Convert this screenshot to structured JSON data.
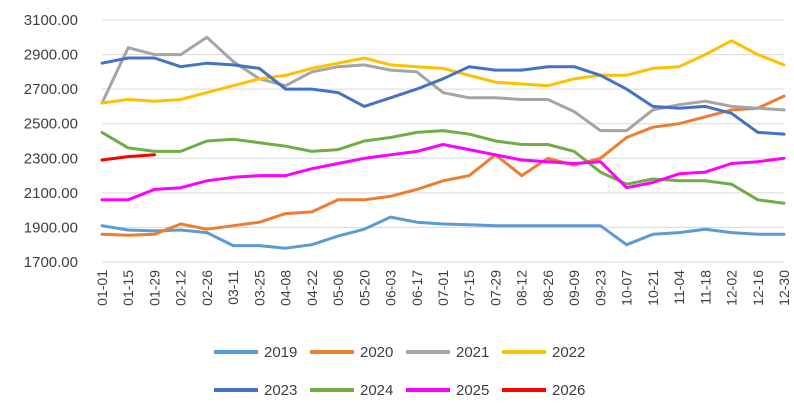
{
  "chart_data": {
    "type": "line",
    "title": "",
    "xlabel": "",
    "ylabel": "",
    "ylim": [
      1700,
      3100
    ],
    "y_ticks": [
      "1700.00",
      "1900.00",
      "2100.00",
      "2300.00",
      "2500.00",
      "2700.00",
      "2900.00",
      "3100.00"
    ],
    "x_ticks": [
      "01-01",
      "01-15",
      "01-29",
      "02-12",
      "02-26",
      "03-11",
      "03-25",
      "04-08",
      "04-22",
      "05-06",
      "05-20",
      "06-03",
      "06-17",
      "07-01",
      "07-15",
      "07-29",
      "08-12",
      "08-26",
      "09-09",
      "09-23",
      "10-07",
      "10-21",
      "11-04",
      "11-18",
      "12-02",
      "12-16",
      "12-30"
    ],
    "grid": "horizontal",
    "legend_position": "bottom",
    "series": [
      {
        "name": "2019",
        "color": "#5B9BD5",
        "values": [
          1910,
          1885,
          1880,
          1885,
          1870,
          1795,
          1795,
          1780,
          1800,
          1850,
          1890,
          1960,
          1930,
          1920,
          1915,
          1910,
          1910,
          1910,
          1910,
          1910,
          1800,
          1860,
          1870,
          1890,
          1870,
          1860,
          1860
        ]
      },
      {
        "name": "2020",
        "color": "#ED7D31",
        "values": [
          1860,
          1855,
          1860,
          1920,
          1890,
          1910,
          1930,
          1980,
          1990,
          2060,
          2060,
          2080,
          2120,
          2170,
          2200,
          2320,
          2200,
          2300,
          2260,
          2300,
          2420,
          2480,
          2500,
          2540,
          2580,
          2590,
          2660
        ]
      },
      {
        "name": "2021",
        "color": "#A5A5A5",
        "values": [
          2620,
          2940,
          2900,
          2900,
          3000,
          2860,
          2760,
          2720,
          2800,
          2830,
          2840,
          2810,
          2800,
          2680,
          2650,
          2650,
          2640,
          2640,
          2570,
          2460,
          2460,
          2580,
          2610,
          2630,
          2600,
          2590,
          2580
        ]
      },
      {
        "name": "2022",
        "color": "#FFC000",
        "values": [
          2620,
          2640,
          2630,
          2640,
          2680,
          2720,
          2760,
          2780,
          2820,
          2850,
          2880,
          2840,
          2830,
          2820,
          2780,
          2740,
          2730,
          2720,
          2760,
          2780,
          2780,
          2820,
          2830,
          2900,
          2980,
          2900,
          2840
        ]
      },
      {
        "name": "2023",
        "color": "#4472C4",
        "values": [
          2850,
          2880,
          2880,
          2830,
          2850,
          2840,
          2820,
          2700,
          2700,
          2680,
          2600,
          2650,
          2700,
          2760,
          2830,
          2810,
          2810,
          2830,
          2830,
          2780,
          2700,
          2600,
          2590,
          2600,
          2560,
          2450,
          2440
        ]
      },
      {
        "name": "2024",
        "color": "#70AD47",
        "values": [
          2450,
          2360,
          2340,
          2340,
          2400,
          2410,
          2390,
          2370,
          2340,
          2350,
          2400,
          2420,
          2450,
          2460,
          2440,
          2400,
          2380,
          2380,
          2340,
          2220,
          2150,
          2180,
          2170,
          2170,
          2150,
          2060,
          2040
        ]
      },
      {
        "name": "2025",
        "color": "#FF00FF",
        "values": [
          2060,
          2060,
          2120,
          2130,
          2170,
          2190,
          2200,
          2200,
          2240,
          2270,
          2300,
          2320,
          2340,
          2380,
          2350,
          2320,
          2290,
          2280,
          2270,
          2280,
          2130,
          2160,
          2210,
          2220,
          2270,
          2280,
          2300
        ]
      },
      {
        "name": "2026",
        "color": "#FF0000",
        "values": [
          2290,
          2310,
          2320,
          null,
          null,
          null,
          null,
          null,
          null,
          null,
          null,
          null,
          null,
          null,
          null,
          null,
          null,
          null,
          null,
          null,
          null,
          null,
          null,
          null,
          null,
          null,
          null
        ]
      }
    ]
  }
}
